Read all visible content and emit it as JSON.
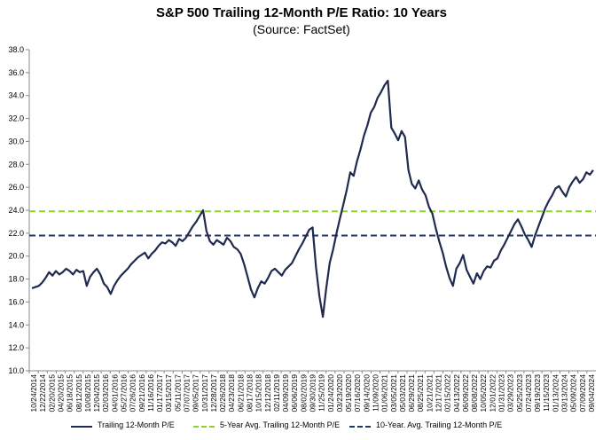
{
  "chart_data": {
    "type": "line",
    "title": "S&P 500 Trailing 12-Month P/E Ratio: 10 Years",
    "subtitle": "(Source: FactSet)",
    "ylim": [
      10.0,
      38.0
    ],
    "y_ticks": [
      "10.0",
      "12.0",
      "14.0",
      "16.0",
      "18.0",
      "20.0",
      "22.0",
      "24.0",
      "26.0",
      "28.0",
      "30.0",
      "32.0",
      "34.0",
      "36.0",
      "38.0"
    ],
    "grid": false,
    "legend_position": "bottom",
    "x_tick_labels": [
      "10/24/2014",
      "12/22/2014",
      "02/20/2015",
      "04/20/2015",
      "06/18/2015",
      "08/12/2015",
      "10/08/2015",
      "12/04/2015",
      "02/03/2016",
      "04/01/2016",
      "05/27/2016",
      "07/26/2016",
      "09/21/2016",
      "11/16/2016",
      "01/17/2017",
      "03/15/2017",
      "05/11/2017",
      "07/07/2017",
      "09/05/2017",
      "10/31/2017",
      "12/28/2017",
      "02/26/2018",
      "04/23/2018",
      "06/21/2018",
      "08/17/2018",
      "10/15/2018",
      "12/12/2018",
      "02/11/2019",
      "04/09/2019",
      "06/06/2019",
      "08/02/2019",
      "09/30/2019",
      "11/25/2019",
      "01/24/2020",
      "03/23/2020",
      "05/19/2020",
      "07/16/2020",
      "09/14/2020",
      "11/09/2020",
      "01/06/2021",
      "03/05/2021",
      "05/03/2021",
      "06/29/2021",
      "08/25/2021",
      "10/21/2021",
      "12/17/2021",
      "02/15/2022",
      "04/13/2022",
      "06/09/2022",
      "08/08/2022",
      "10/05/2022",
      "12/01/2022",
      "01/31/2023",
      "03/29/2023",
      "05/25/2023",
      "07/24/2023",
      "09/19/2023",
      "11/15/2023",
      "01/13/2024",
      "03/13/2024",
      "05/09/2024",
      "07/09/2024",
      "09/04/2024"
    ],
    "series": [
      {
        "name": "Trailing 12-Month P/E",
        "color": "#1f2a4e",
        "style": "solid",
        "values": [
          [
            0,
            17.2
          ],
          [
            1,
            17.3
          ],
          [
            2,
            17.4
          ],
          [
            3,
            17.7
          ],
          [
            4,
            18.1
          ],
          [
            5,
            18.6
          ],
          [
            6,
            18.3
          ],
          [
            7,
            18.7
          ],
          [
            8,
            18.4
          ],
          [
            9,
            18.6
          ],
          [
            10,
            18.9
          ],
          [
            11,
            18.7
          ],
          [
            12,
            18.4
          ],
          [
            13,
            18.8
          ],
          [
            14,
            18.6
          ],
          [
            15,
            18.7
          ],
          [
            16,
            17.4
          ],
          [
            17,
            18.2
          ],
          [
            18,
            18.6
          ],
          [
            19,
            18.9
          ],
          [
            20,
            18.4
          ],
          [
            21,
            17.6
          ],
          [
            22,
            17.3
          ],
          [
            23,
            16.7
          ],
          [
            24,
            17.4
          ],
          [
            25,
            17.9
          ],
          [
            26,
            18.3
          ],
          [
            27,
            18.6
          ],
          [
            28,
            18.9
          ],
          [
            29,
            19.3
          ],
          [
            30,
            19.6
          ],
          [
            31,
            19.9
          ],
          [
            32,
            20.1
          ],
          [
            33,
            20.3
          ],
          [
            34,
            19.8
          ],
          [
            35,
            20.2
          ],
          [
            36,
            20.5
          ],
          [
            37,
            20.9
          ],
          [
            38,
            21.2
          ],
          [
            39,
            21.1
          ],
          [
            40,
            21.4
          ],
          [
            41,
            21.2
          ],
          [
            42,
            20.9
          ],
          [
            43,
            21.5
          ],
          [
            44,
            21.3
          ],
          [
            45,
            21.6
          ],
          [
            46,
            22.1
          ],
          [
            47,
            22.6
          ],
          [
            48,
            23.0
          ],
          [
            49,
            23.5
          ],
          [
            50,
            24.0
          ],
          [
            51,
            22.2
          ],
          [
            52,
            21.3
          ],
          [
            53,
            21.0
          ],
          [
            54,
            21.4
          ],
          [
            55,
            21.2
          ],
          [
            56,
            21.0
          ],
          [
            57,
            21.6
          ],
          [
            58,
            21.3
          ],
          [
            59,
            20.8
          ],
          [
            60,
            20.6
          ],
          [
            61,
            20.2
          ],
          [
            62,
            19.3
          ],
          [
            63,
            18.2
          ],
          [
            64,
            17.1
          ],
          [
            65,
            16.4
          ],
          [
            66,
            17.2
          ],
          [
            67,
            17.8
          ],
          [
            68,
            17.6
          ],
          [
            69,
            18.1
          ],
          [
            70,
            18.7
          ],
          [
            71,
            18.9
          ],
          [
            72,
            18.6
          ],
          [
            73,
            18.3
          ],
          [
            74,
            18.8
          ],
          [
            75,
            19.1
          ],
          [
            76,
            19.4
          ],
          [
            77,
            20.0
          ],
          [
            78,
            20.6
          ],
          [
            79,
            21.1
          ],
          [
            80,
            21.7
          ],
          [
            81,
            22.3
          ],
          [
            82,
            22.5
          ],
          [
            83,
            19.0
          ],
          [
            84,
            16.5
          ],
          [
            85,
            14.7
          ],
          [
            86,
            17.2
          ],
          [
            87,
            19.4
          ],
          [
            88,
            20.6
          ],
          [
            89,
            22.0
          ],
          [
            90,
            23.3
          ],
          [
            91,
            24.5
          ],
          [
            92,
            25.8
          ],
          [
            93,
            27.3
          ],
          [
            94,
            27.0
          ],
          [
            95,
            28.3
          ],
          [
            96,
            29.3
          ],
          [
            97,
            30.5
          ],
          [
            98,
            31.4
          ],
          [
            99,
            32.5
          ],
          [
            100,
            33.0
          ],
          [
            101,
            33.8
          ],
          [
            102,
            34.3
          ],
          [
            103,
            34.9
          ],
          [
            104,
            35.3
          ],
          [
            105,
            31.2
          ],
          [
            106,
            30.7
          ],
          [
            107,
            30.1
          ],
          [
            108,
            30.9
          ],
          [
            109,
            30.4
          ],
          [
            110,
            27.5
          ],
          [
            111,
            26.3
          ],
          [
            112,
            25.9
          ],
          [
            113,
            26.6
          ],
          [
            114,
            25.8
          ],
          [
            115,
            25.3
          ],
          [
            116,
            24.3
          ],
          [
            117,
            23.7
          ],
          [
            118,
            22.4
          ],
          [
            119,
            21.3
          ],
          [
            120,
            20.3
          ],
          [
            121,
            19.1
          ],
          [
            122,
            18.1
          ],
          [
            123,
            17.4
          ],
          [
            124,
            18.9
          ],
          [
            125,
            19.4
          ],
          [
            126,
            20.1
          ],
          [
            127,
            18.8
          ],
          [
            128,
            18.2
          ],
          [
            129,
            17.6
          ],
          [
            130,
            18.5
          ],
          [
            131,
            18.0
          ],
          [
            132,
            18.7
          ],
          [
            133,
            19.1
          ],
          [
            134,
            19.0
          ],
          [
            135,
            19.6
          ],
          [
            136,
            19.8
          ],
          [
            137,
            20.5
          ],
          [
            138,
            21.0
          ],
          [
            139,
            21.6
          ],
          [
            140,
            22.2
          ],
          [
            141,
            22.8
          ],
          [
            142,
            23.2
          ],
          [
            143,
            22.6
          ],
          [
            144,
            21.9
          ],
          [
            145,
            21.4
          ],
          [
            146,
            20.8
          ],
          [
            147,
            21.8
          ],
          [
            148,
            22.6
          ],
          [
            149,
            23.4
          ],
          [
            150,
            24.2
          ],
          [
            151,
            24.8
          ],
          [
            152,
            25.3
          ],
          [
            153,
            25.9
          ],
          [
            154,
            26.1
          ],
          [
            155,
            25.6
          ],
          [
            156,
            25.2
          ],
          [
            157,
            26.0
          ],
          [
            158,
            26.5
          ],
          [
            159,
            26.9
          ],
          [
            160,
            26.4
          ],
          [
            161,
            26.7
          ],
          [
            162,
            27.3
          ],
          [
            163,
            27.1
          ],
          [
            164,
            27.5
          ]
        ]
      },
      {
        "name": "5-Year Avg. Trailing 12-Month P/E",
        "color": "#8ed12b",
        "style": "dashed",
        "value": 23.9
      },
      {
        "name": "10-Year. Avg. Trailing 12-Month P/E",
        "color": "#1f3864",
        "style": "dashed",
        "value": 21.8
      }
    ]
  }
}
